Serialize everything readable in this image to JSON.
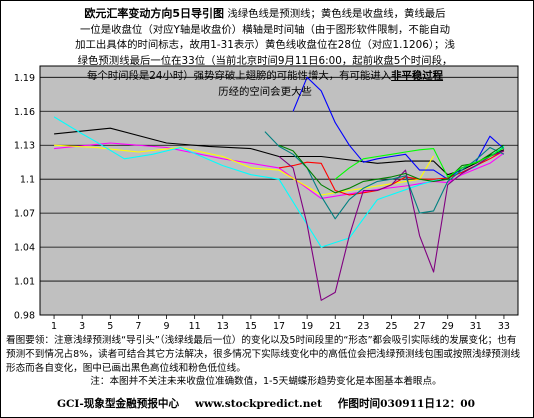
{
  "header": {
    "title": "欧元汇率变动方向5日导引图",
    "line1_rest": "浅绿色线是预测线；黄色线是收盘线，黄线最后",
    "line2": "一位是收盘位（对应Y轴是收盘价）横轴是时间轴（由于图形软件限制，不能自动",
    "line3": "加工出具体的时间标志，故用1-31表示）黄色线收盘位在28位（对应1.1206）；浅",
    "line4": "绿色预测线最后一位在33位（当前北京时间9月11日6:00，起前收盘5个时间段，",
    "line5": "每个时间段是24小时）强势穿破上翅膀的可能性增大，有可能进入",
    "line5_em": "非平稳过程",
    "line6": "历经的空间会更大些"
  },
  "bottom": {
    "para1": "看图要领：注意浅绿预测线“导引头”（浅绿线最后一位）的变化以及5时间段里的“形态”都会吸引实际线的发展变化；也有预测不到情况占8%，读者可结合其它方法解决，很多情况下实际线变化中的高低位会把浅绿预测线包围或按照浅绿预测线形态而各自变化，图中已画出黑色高位线和粉色低位线。",
    "note": "注：本图并不关注未来收盘位准确数值，1-5天蝴蝶形趋势变化是本图基本着眼点。"
  },
  "footer": {
    "org": "GCI-现象型金融预报中心",
    "url": "www.stockpredict.net",
    "time": "作图时间030911日12：00"
  },
  "colors": {
    "plot_bg": "#c0c0c0",
    "black_high": "#000000",
    "pink_low": "#ff00ff",
    "yellow_close": "#ffff00",
    "light_green_forecast": "#00ffff",
    "blue": "#0000ff",
    "red": "#ff0000",
    "purple": "#800080",
    "teal": "#008080",
    "green": "#008000",
    "lime": "#00ff00"
  },
  "chart_data": {
    "type": "line",
    "ylim": [
      0.98,
      1.2
    ],
    "yticks": [
      "0.98",
      "1.01",
      "1.04",
      "1.07",
      "1.1",
      "1.13",
      "1.16",
      "1.19"
    ],
    "xticks": [
      "1",
      "3",
      "5",
      "7",
      "9",
      "11",
      "13",
      "15",
      "17",
      "19",
      "21",
      "23",
      "25",
      "27",
      "29",
      "31",
      "33"
    ],
    "grid": true,
    "series": [
      {
        "color_key": "black_high",
        "x": [
          1,
          5,
          9,
          12,
          15,
          17,
          20,
          24,
          26,
          28,
          29,
          30,
          31,
          32,
          33
        ],
        "y": [
          1.14,
          1.145,
          1.132,
          1.129,
          1.127,
          1.12,
          1.12,
          1.114,
          1.116,
          1.116,
          1.104,
          1.108,
          1.114,
          1.121,
          1.126
        ]
      },
      {
        "color_key": "pink_low",
        "x": [
          1,
          5,
          9,
          13,
          15,
          17,
          20,
          24,
          26,
          28,
          29,
          30,
          31,
          32,
          33
        ],
        "y": [
          1.127,
          1.132,
          1.128,
          1.118,
          1.114,
          1.11,
          1.083,
          1.091,
          1.094,
          1.098,
          1.097,
          1.104,
          1.109,
          1.114,
          1.123
        ]
      },
      {
        "color_key": "yellow_close",
        "x": [
          1,
          4,
          7,
          10,
          13,
          15,
          17,
          20,
          24,
          27,
          28
        ],
        "y": [
          1.13,
          1.128,
          1.124,
          1.128,
          1.12,
          1.11,
          1.108,
          1.086,
          1.094,
          1.1,
          1.1206
        ]
      },
      {
        "color_key": "light_green_forecast",
        "x": [
          1,
          3,
          4,
          6,
          8,
          10,
          13,
          15,
          17,
          19,
          20,
          22,
          24,
          27,
          29,
          31,
          33
        ],
        "y": [
          1.155,
          1.14,
          1.133,
          1.118,
          1.122,
          1.128,
          1.112,
          1.104,
          1.1,
          1.06,
          1.04,
          1.048,
          1.082,
          1.095,
          1.102,
          1.111,
          1.129
        ]
      },
      {
        "color_key": "blue",
        "x": [
          18,
          19,
          20,
          21,
          22,
          23,
          24,
          25,
          26,
          27,
          28,
          29,
          30,
          31,
          32,
          33
        ],
        "y": [
          1.16,
          1.19,
          1.178,
          1.15,
          1.13,
          1.115,
          1.118,
          1.12,
          1.122,
          1.108,
          1.108,
          1.1,
          1.11,
          1.115,
          1.138,
          1.127
        ]
      },
      {
        "color_key": "red",
        "x": [
          17,
          18,
          19,
          20,
          21,
          22,
          23,
          24,
          25,
          26,
          27,
          28,
          29,
          30,
          31,
          32,
          33
        ],
        "y": [
          1.11,
          1.112,
          1.115,
          1.114,
          1.09,
          1.086,
          1.088,
          1.09,
          1.095,
          1.102,
          1.1,
          1.1,
          1.101,
          1.106,
          1.112,
          1.118,
          1.125
        ]
      },
      {
        "color_key": "purple",
        "x": [
          17,
          18,
          19,
          20,
          21,
          22,
          23,
          24,
          25,
          26,
          27,
          28,
          29,
          30,
          31,
          32,
          33
        ],
        "y": [
          1.12,
          1.11,
          1.06,
          0.993,
          1.0,
          1.05,
          1.09,
          1.09,
          1.095,
          1.108,
          1.05,
          1.018,
          1.095,
          1.105,
          1.112,
          1.12,
          1.125
        ]
      },
      {
        "color_key": "teal",
        "x": [
          16,
          17,
          18,
          19,
          20,
          21,
          22,
          23,
          24,
          25,
          26,
          27,
          28,
          29,
          30,
          31,
          32,
          33
        ],
        "y": [
          1.142,
          1.129,
          1.122,
          1.11,
          1.085,
          1.065,
          1.082,
          1.092,
          1.098,
          1.1,
          1.103,
          1.07,
          1.072,
          1.098,
          1.108,
          1.117,
          1.128,
          1.122
        ]
      },
      {
        "color_key": "green",
        "x": [
          17,
          18,
          19,
          20,
          21,
          22,
          23,
          24,
          25,
          26,
          27,
          28,
          29,
          30,
          31,
          32,
          33
        ],
        "y": [
          1.13,
          1.125,
          1.11,
          1.095,
          1.088,
          1.092,
          1.098,
          1.1,
          1.102,
          1.105,
          1.1,
          1.098,
          1.1,
          1.112,
          1.114,
          1.122,
          1.13
        ]
      },
      {
        "color_key": "lime",
        "x": [
          21,
          22,
          23,
          24,
          25,
          26,
          27,
          28,
          29,
          30,
          31,
          32,
          33
        ],
        "y": [
          1.1,
          1.11,
          1.118,
          1.12,
          1.122,
          1.124,
          1.126,
          1.127,
          1.102,
          1.11,
          1.115,
          1.12,
          1.128
        ]
      }
    ]
  }
}
